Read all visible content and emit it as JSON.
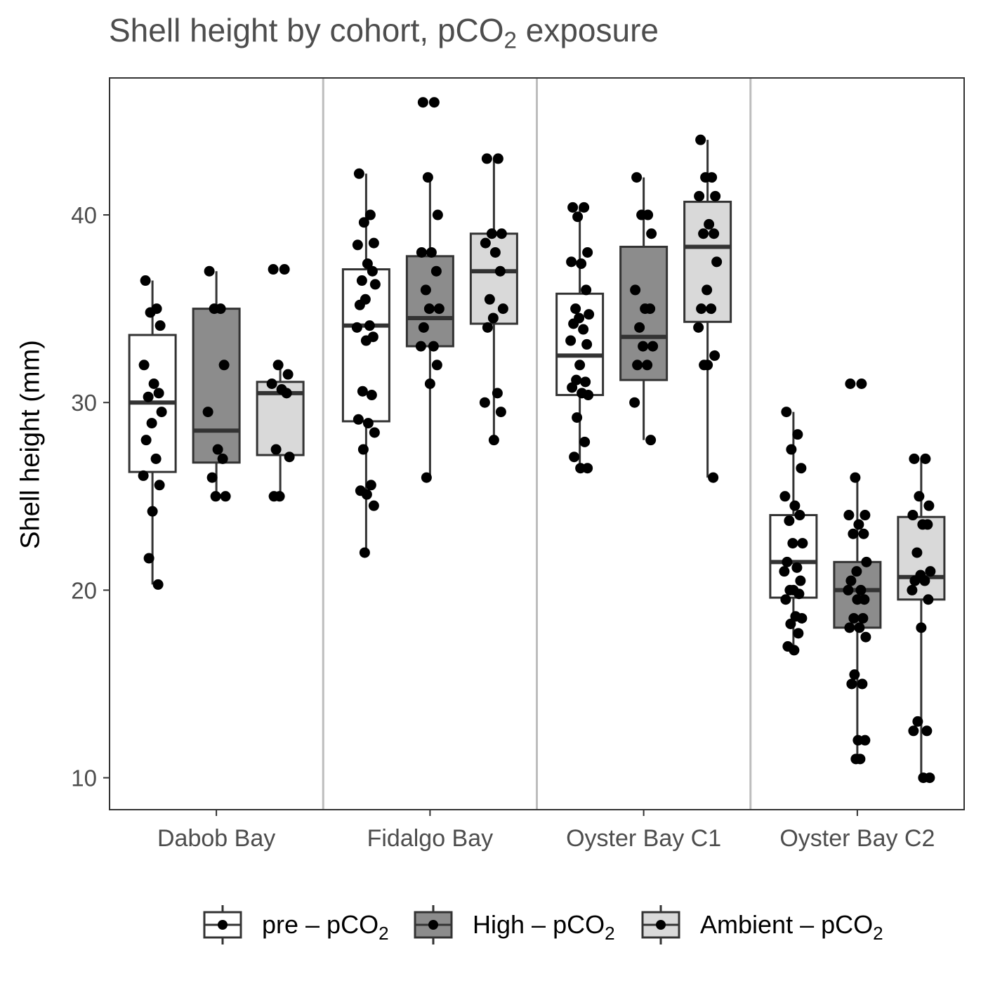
{
  "chart_data": {
    "type": "box",
    "title": {
      "main": "Shell height by cohort, pCO",
      "sub": "2",
      "tail": " exposure"
    },
    "ylabel": "Shell height (mm)",
    "xlabel": "",
    "ylim": [
      8.3,
      47.3
    ],
    "yticks": [
      10,
      20,
      30,
      40
    ],
    "grid": false,
    "legend_position": "bottom",
    "categories": [
      "Dabob Bay",
      "Fidalgo Bay",
      "Oyster Bay C1",
      "Oyster Bay C2"
    ],
    "series": [
      {
        "name": "pre – pCO2",
        "label_main": "pre – pCO",
        "label_sub": "2",
        "color": "#ffffff",
        "boxes": [
          {
            "whislo": 20.3,
            "q1": 26.3,
            "med": 30.0,
            "q3": 33.6,
            "whishi": 36.5
          },
          {
            "whislo": 22.0,
            "q1": 29.0,
            "med": 34.1,
            "q3": 37.1,
            "whishi": 42.2
          },
          {
            "whislo": 26.5,
            "q1": 30.4,
            "med": 32.5,
            "q3": 35.8,
            "whishi": 40.4
          },
          {
            "whislo": 16.8,
            "q1": 19.6,
            "med": 21.5,
            "q3": 24.0,
            "whishi": 29.5
          }
        ],
        "points": [
          [
            36.5,
            35.0,
            34.8,
            34.1,
            32.0,
            31.0,
            30.5,
            30.3,
            29.5,
            28.9,
            28.0,
            27.0,
            26.1,
            25.6,
            24.2,
            21.7,
            20.3
          ],
          [
            42.2,
            40.0,
            39.6,
            38.5,
            38.4,
            37.4,
            37.0,
            36.5,
            36.3,
            35.5,
            35.2,
            34.1,
            34.0,
            33.5,
            33.3,
            30.6,
            30.4,
            29.1,
            28.9,
            28.4,
            27.5,
            25.6,
            25.3,
            25.1,
            24.5,
            22.0
          ],
          [
            40.4,
            40.4,
            39.9,
            38.0,
            37.5,
            37.4,
            36.0,
            35.0,
            34.7,
            34.5,
            34.2,
            33.9,
            33.3,
            33.1,
            32.0,
            31.2,
            31.1,
            30.8,
            30.5,
            30.4,
            29.2,
            27.9,
            27.1,
            26.5,
            26.5
          ],
          [
            29.5,
            28.3,
            27.5,
            26.5,
            25.0,
            24.5,
            24.0,
            23.7,
            22.5,
            22.5,
            21.5,
            21.2,
            21.0,
            20.5,
            20.0,
            20.0,
            19.8,
            19.5,
            18.6,
            18.5,
            18.2,
            17.7,
            17.0,
            16.8
          ]
        ]
      },
      {
        "name": "High – pCO2",
        "label_main": "High – pCO",
        "label_sub": "2",
        "color": "#8c8c8c",
        "boxes": [
          {
            "whislo": 25.0,
            "q1": 26.8,
            "med": 28.5,
            "q3": 35.0,
            "whishi": 37.0
          },
          {
            "whislo": 26.0,
            "q1": 33.0,
            "med": 34.5,
            "q3": 37.8,
            "whishi": 42.0
          },
          {
            "whislo": 28.0,
            "q1": 31.2,
            "med": 33.5,
            "q3": 38.3,
            "whishi": 42.0
          },
          {
            "whislo": 11.0,
            "q1": 18.0,
            "med": 20.0,
            "q3": 21.5,
            "whishi": 26.0
          }
        ],
        "points": [
          [
            37.0,
            35.0,
            35.0,
            32.0,
            29.5,
            27.5,
            27.0,
            26.0,
            25.0,
            25.0
          ],
          [
            46.0,
            46.0,
            42.0,
            40.0,
            38.0,
            38.0,
            37.0,
            36.0,
            35.0,
            35.0,
            34.0,
            33.0,
            33.0,
            32.0,
            31.0,
            26.0
          ],
          [
            42.0,
            40.0,
            40.0,
            39.0,
            36.0,
            35.0,
            35.0,
            34.0,
            33.0,
            33.0,
            32.0,
            32.0,
            30.0,
            28.0
          ],
          [
            31.0,
            31.0,
            26.0,
            24.0,
            24.0,
            23.5,
            23.0,
            23.0,
            21.5,
            21.0,
            20.5,
            20.0,
            20.0,
            19.5,
            19.5,
            18.5,
            18.5,
            18.0,
            18.0,
            17.5,
            15.5,
            15.0,
            15.0,
            12.0,
            12.0,
            11.0,
            11.0
          ]
        ]
      },
      {
        "name": "Ambient – pCO2",
        "label_main": "Ambient – pCO",
        "label_sub": "2",
        "color": "#d9d9d9",
        "boxes": [
          {
            "whislo": 25.0,
            "q1": 27.2,
            "med": 30.5,
            "q3": 31.1,
            "whishi": 32.0
          },
          {
            "whislo": 28.0,
            "q1": 34.2,
            "med": 37.0,
            "q3": 39.0,
            "whishi": 43.0
          },
          {
            "whislo": 26.0,
            "q1": 34.3,
            "med": 38.3,
            "q3": 40.7,
            "whishi": 44.0
          },
          {
            "whislo": 10.0,
            "q1": 19.5,
            "med": 20.7,
            "q3": 23.9,
            "whishi": 27.0
          }
        ],
        "points": [
          [
            37.1,
            37.1,
            32.0,
            31.5,
            31.0,
            30.7,
            30.5,
            27.5,
            27.1,
            25.0,
            25.0
          ],
          [
            43.0,
            43.0,
            39.0,
            39.0,
            38.5,
            38.0,
            37.0,
            35.5,
            35.0,
            34.5,
            34.0,
            30.5,
            30.0,
            29.5,
            28.0
          ],
          [
            44.0,
            42.0,
            42.0,
            41.0,
            41.0,
            39.5,
            39.0,
            39.0,
            37.5,
            36.0,
            35.0,
            35.0,
            34.0,
            32.5,
            32.0,
            32.0,
            26.0
          ],
          [
            27.0,
            27.0,
            25.0,
            24.5,
            24.0,
            23.5,
            23.5,
            22.0,
            21.0,
            20.8,
            20.5,
            20.5,
            20.0,
            19.5,
            18.0,
            13.0,
            12.5,
            12.5,
            10.0,
            10.0
          ]
        ]
      }
    ]
  }
}
